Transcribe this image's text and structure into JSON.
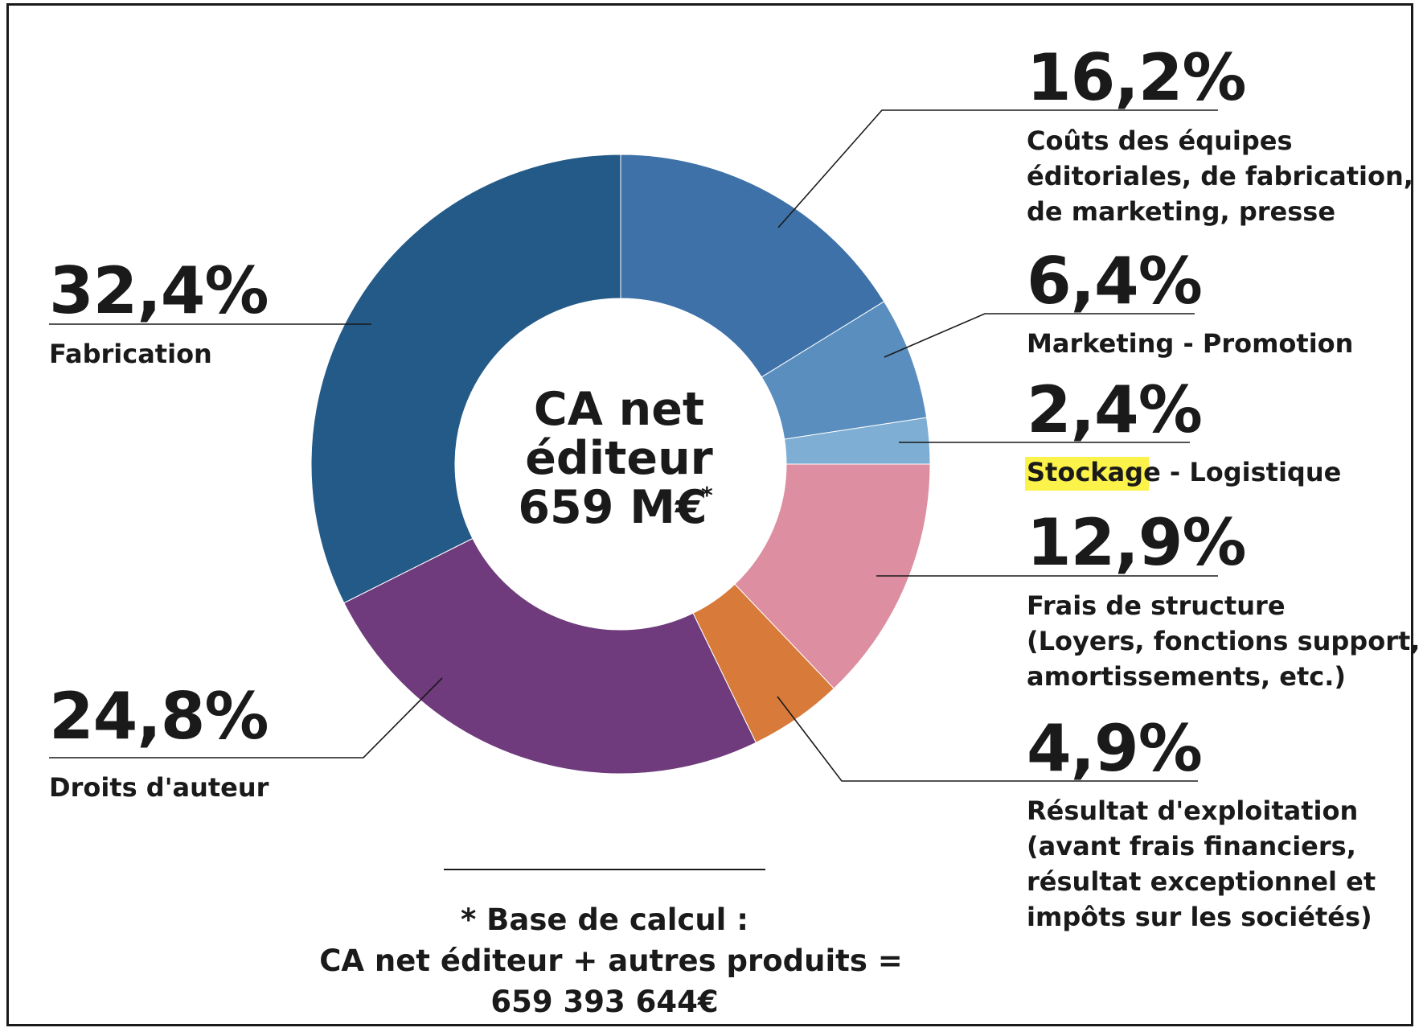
{
  "chart_data": {
    "type": "pie",
    "variant": "donut",
    "center": {
      "line1": "CA net",
      "line2": "éditeur",
      "line3": "659 M€",
      "sup": "*"
    },
    "slices": [
      {
        "value": 16.2,
        "label_pct": "16,2%",
        "label_lines": [
          "Coûts des équipes",
          "éditoriales, de fabrication,",
          "de marketing, presse"
        ],
        "color": "#3d71a8"
      },
      {
        "value": 6.4,
        "label_pct": "6,4%",
        "label_lines": [
          "Marketing - Promotion"
        ],
        "color": "#5a8ebe"
      },
      {
        "value": 2.4,
        "label_pct": "2,4%",
        "label_lines": [
          "Stockage",
          " - Logistique"
        ],
        "highlight_first": true,
        "highlight_color": "#fbf24a",
        "color": "#7eaed3"
      },
      {
        "value": 12.9,
        "label_pct": "12,9%",
        "label_lines": [
          "Frais de structure",
          "(Loyers, fonctions support,",
          "amortissements, etc.)"
        ],
        "color": "#dd8ea0"
      },
      {
        "value": 4.9,
        "label_pct": "4,9%",
        "label_lines": [
          "Résultat d'exploitation",
          "(avant frais financiers,",
          "résultat exceptionnel et",
          "impôts sur les sociétés)"
        ],
        "color": "#d77a3a"
      },
      {
        "value": 24.8,
        "label_pct": "24,8%",
        "label_lines": [
          "Droits d'auteur"
        ],
        "color": "#6f3b7c"
      },
      {
        "value": 32.4,
        "label_pct": "32,4%",
        "label_lines": [
          "Fabrication"
        ],
        "color": "#245a87"
      }
    ]
  },
  "footnote": {
    "line1": "* Base de calcul :",
    "line2": "CA net éditeur + autres produits =",
    "line3": "659 393 644€"
  }
}
